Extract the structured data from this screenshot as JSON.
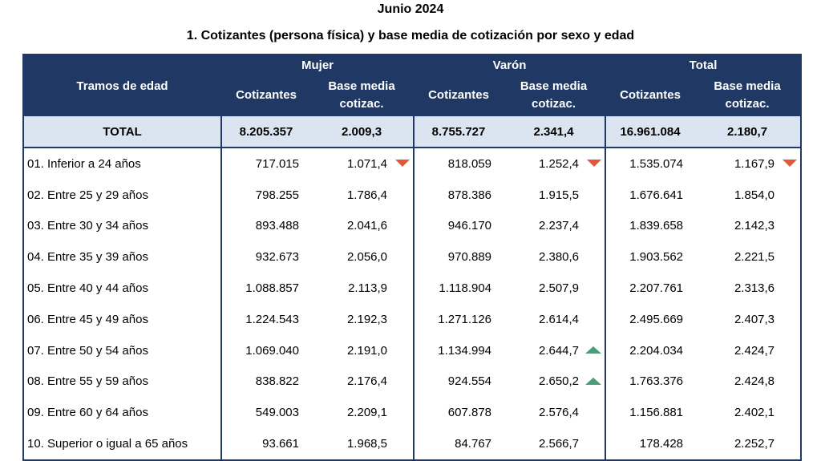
{
  "header": {
    "period": "Junio 2024",
    "title": "1. Cotizantes (persona física) y base media de cotización por sexo y edad"
  },
  "table": {
    "row_header": "Tramos de edad",
    "groups": [
      "Mujer",
      "Varón",
      "Total"
    ],
    "subcols": {
      "cotizantes": "Cotizantes",
      "base_line1": "Base media",
      "base_line2": "cotizac."
    },
    "total_row": {
      "label": "TOTAL",
      "values": [
        "8.205.357",
        "2.009,3",
        "8.755.727",
        "2.341,4",
        "16.961.084",
        "2.180,7"
      ]
    },
    "rows": [
      {
        "label": "01. Inferior a 24 años",
        "values": [
          "717.015",
          "1.071,4",
          "818.059",
          "1.252,4",
          "1.535.074",
          "1.167,9"
        ],
        "marks": [
          "down",
          "down",
          "down"
        ]
      },
      {
        "label": "02. Entre 25 y 29 años",
        "values": [
          "798.255",
          "1.786,4",
          "878.386",
          "1.915,5",
          "1.676.641",
          "1.854,0"
        ],
        "marks": [
          "",
          "",
          ""
        ]
      },
      {
        "label": "03. Entre 30 y 34 años",
        "values": [
          "893.488",
          "2.041,6",
          "946.170",
          "2.237,4",
          "1.839.658",
          "2.142,3"
        ],
        "marks": [
          "",
          "",
          ""
        ]
      },
      {
        "label": "04. Entre 35 y 39 años",
        "values": [
          "932.673",
          "2.056,0",
          "970.889",
          "2.380,6",
          "1.903.562",
          "2.221,5"
        ],
        "marks": [
          "",
          "",
          ""
        ]
      },
      {
        "label": "05. Entre 40 y 44 años",
        "values": [
          "1.088.857",
          "2.113,9",
          "1.118.904",
          "2.507,9",
          "2.207.761",
          "2.313,6"
        ],
        "marks": [
          "",
          "",
          ""
        ]
      },
      {
        "label": "06. Entre 45 y 49 años",
        "values": [
          "1.224.543",
          "2.192,3",
          "1.271.126",
          "2.614,4",
          "2.495.669",
          "2.407,3"
        ],
        "marks": [
          "",
          "",
          ""
        ]
      },
      {
        "label": "07. Entre 50 y 54 años",
        "values": [
          "1.069.040",
          "2.191,0",
          "1.134.994",
          "2.644,7",
          "2.204.034",
          "2.424,7"
        ],
        "marks": [
          "",
          "up",
          ""
        ]
      },
      {
        "label": "08. Entre 55 y 59 años",
        "values": [
          "838.822",
          "2.176,4",
          "924.554",
          "2.650,2",
          "1.763.376",
          "2.424,8"
        ],
        "marks": [
          "",
          "up",
          ""
        ]
      },
      {
        "label": "09. Entre 60 y 64 años",
        "values": [
          "549.003",
          "2.209,1",
          "607.878",
          "2.576,4",
          "1.156.881",
          "2.402,1"
        ],
        "marks": [
          "",
          "",
          ""
        ]
      },
      {
        "label": "10. Superior o igual a 65 años",
        "values": [
          "93.661",
          "1.968,5",
          "84.767",
          "2.566,7",
          "178.428",
          "2.252,7"
        ],
        "marks": [
          "",
          "",
          ""
        ]
      }
    ]
  }
}
